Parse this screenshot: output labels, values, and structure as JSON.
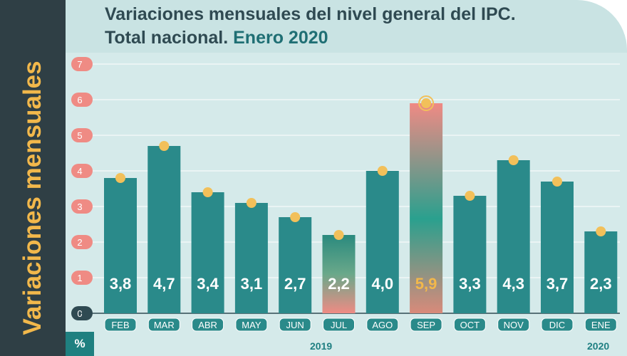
{
  "title": {
    "line1": "Variaciones mensuales del nivel general del IPC.",
    "line2_a": "Total nacional.",
    "line2_b": "Enero 2020"
  },
  "side_label": "Variaciones mensuales",
  "unit_label": "%",
  "year_labels": [
    "2019",
    "2020"
  ],
  "colors": {
    "bar": "#2a8a8a",
    "dot": "#f2c05a",
    "tick_badge": "#ef8b84",
    "zero_badge": "#2f4a52",
    "highlight_label": "#f2b84b",
    "sidebar": "#2f3f45"
  },
  "chart_data": {
    "type": "bar",
    "categories": [
      "FEB",
      "MAR",
      "ABR",
      "MAY",
      "JUN",
      "JUL",
      "AGO",
      "SEP",
      "OCT",
      "NOV",
      "DIC",
      "ENE"
    ],
    "values": [
      3.8,
      4.7,
      3.4,
      3.1,
      2.7,
      2.2,
      4.0,
      5.9,
      3.3,
      4.3,
      3.7,
      2.3
    ],
    "value_labels": [
      "3,8",
      "4,7",
      "3,4",
      "3,1",
      "2,7",
      "2,2",
      "4,0",
      "5,9",
      "3,3",
      "4,3",
      "3,7",
      "2,3"
    ],
    "highlight": [
      "",
      "",
      "",
      "",
      "",
      "gradient-low",
      "",
      "gradient-high",
      "",
      "",
      "",
      ""
    ],
    "y_ticks": [
      0,
      1,
      2,
      3,
      4,
      5,
      6,
      7
    ],
    "ylim": [
      0,
      7
    ],
    "grid": true,
    "title": "Variaciones mensuales del nivel general del IPC. Total nacional. Enero 2020",
    "ylabel": "Variaciones mensuales"
  }
}
